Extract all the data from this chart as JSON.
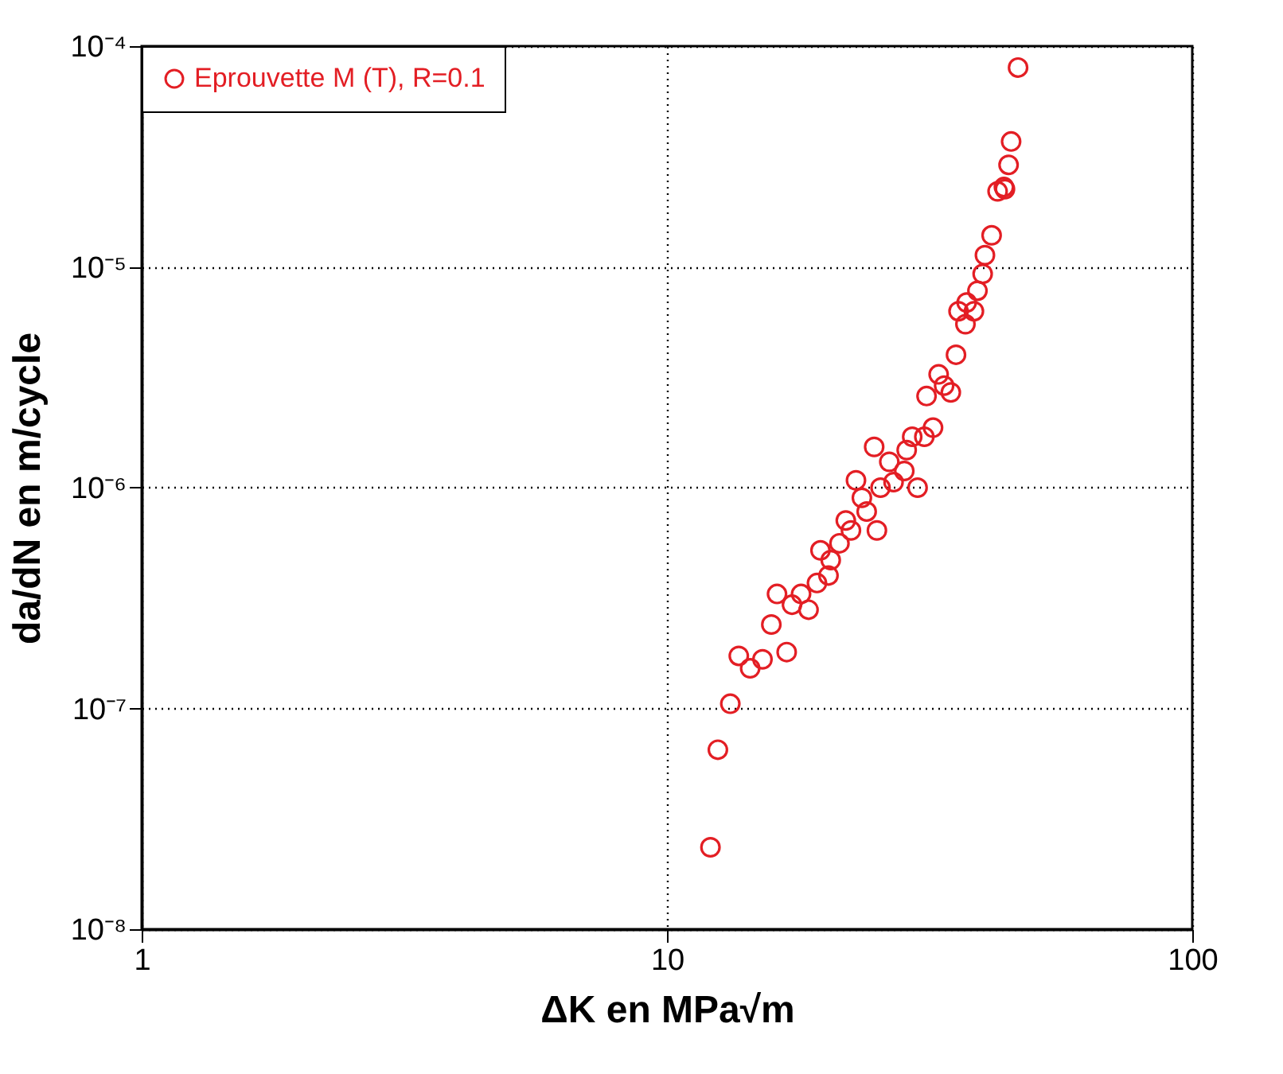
{
  "chart_data": {
    "type": "scatter",
    "xlabel": "ΔK en MPa√m",
    "ylabel": "da/dN en m/cycle",
    "log": "xy",
    "xlim": [
      1,
      100
    ],
    "ylim": [
      1e-08,
      0.0001
    ],
    "xticks": [
      1,
      10,
      100
    ],
    "yticks": [
      {
        "value": 1e-08,
        "label": "10⁻⁸"
      },
      {
        "value": 1e-07,
        "label": "10⁻⁷"
      },
      {
        "value": 1e-06,
        "label": "10⁻⁶"
      },
      {
        "value": 1e-05,
        "label": "10⁻⁵"
      },
      {
        "value": 0.0001,
        "label": "10⁻⁴"
      }
    ],
    "grid": true,
    "legend": "top left",
    "marker": "circle",
    "series": [
      {
        "name": "Eprouvette M (T), R=0.1",
        "color": "#e31e24",
        "x": [
          12.1,
          12.5,
          13.2,
          13.7,
          14.4,
          15.2,
          15.8,
          16.9,
          16.2,
          17.3,
          18.0,
          18.6,
          19.3,
          20.3,
          20.5,
          19.6,
          21.3,
          21.9,
          22.4,
          25.1,
          24.0,
          23.5,
          22.9,
          25.5,
          27.0,
          30.0,
          28.3,
          26.5,
          24.8,
          28.6,
          29.3,
          30.9,
          32.1,
          31.2,
          34.7,
          33.7,
          32.9,
          35.5,
          37.0,
          38.4,
          35.9,
          37.2,
          39.0,
          39.9,
          40.3,
          41.5,
          44.0,
          42.6,
          43.8,
          44.7,
          45.2,
          46.6
        ],
        "values": [
          2.35e-08,
          6.5e-08,
          1.05e-07,
          1.73e-07,
          1.52e-07,
          1.67e-07,
          2.4e-07,
          1.8e-07,
          3.3e-07,
          2.95e-07,
          3.3e-07,
          2.8e-07,
          3.7e-07,
          4e-07,
          4.7e-07,
          5.2e-07,
          5.6e-07,
          7.1e-07,
          6.4e-07,
          6.4e-07,
          7.8e-07,
          9e-07,
          1.08e-06,
          1e-06,
          1.06e-06,
          1e-06,
          1.19e-06,
          1.31e-06,
          1.53e-06,
          1.48e-06,
          1.7e-06,
          1.7e-06,
          1.87e-06,
          2.6e-06,
          2.7e-06,
          2.9e-06,
          3.26e-06,
          4e-06,
          5.5e-06,
          6.3e-06,
          6.3e-06,
          6.9e-06,
          7.8e-06,
          9.3e-06,
          1.13e-05,
          1.39e-05,
          2.25e-05,
          2.2e-05,
          2.3e-05,
          2.9e-05,
          3.7e-05,
          8e-05
        ]
      }
    ]
  }
}
